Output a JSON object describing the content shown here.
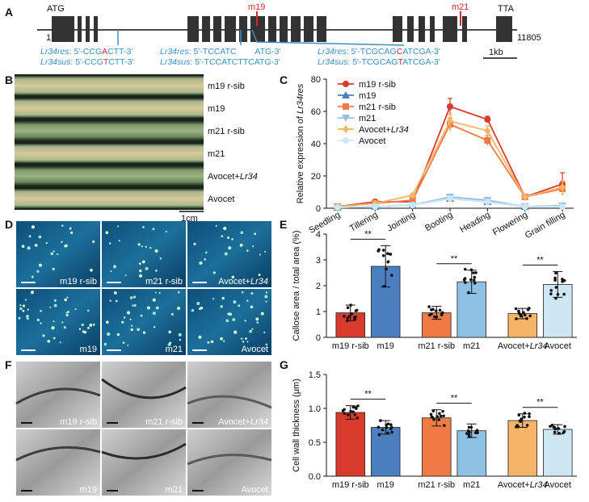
{
  "panel_labels": {
    "a": "A",
    "b": "B",
    "c": "C",
    "d": "D",
    "e": "E",
    "f": "F",
    "g": "G"
  },
  "panel_a": {
    "start_codon": "ATG",
    "stop_codon": "TTA",
    "pos_start": "1",
    "pos_end": "11805",
    "mutations": [
      "m19",
      "m21"
    ],
    "scale_bar": "1kb",
    "sequences": [
      {
        "res_label": "Lr34res",
        "res_seq_pre": ": 5'-CCG",
        "res_mut": "A",
        "res_seq_post": "CTT-3'",
        "sus_label": "Lr34sus",
        "sus_seq_pre": ": 5'-CCG",
        "sus_mut": "T",
        "sus_seq_post": "CTT-3'"
      },
      {
        "res_label": "Lr34res",
        "res_seq": ": 5'-TCCATC        ATG-3'",
        "sus_label": "Lr34sus",
        "sus_seq": ": 5'-TCCATCTTCATG-3'"
      },
      {
        "res_label": "Lr34res",
        "res_seq_pre": ": 5'-TCGCAG",
        "res_mut": "C",
        "res_seq_post": "ATCGA-3'",
        "sus_label": "Lr34sus",
        "sus_seq_pre": ": 5'-TCGCAG",
        "sus_mut": "T",
        "sus_seq_post": "ATCGA-3'"
      }
    ]
  },
  "panel_b": {
    "leaves": [
      "m19 r-sib",
      "m19",
      "m21 r-sib",
      "m21",
      "Avocet+Lr34",
      "Avocet"
    ],
    "scale_bar": "1cm"
  },
  "panel_d": {
    "top_row": [
      "m19 r-sib",
      "m21 r-sib",
      "Avocet+Lr34"
    ],
    "bottom_row": [
      "m19",
      "m21",
      "Avocet"
    ]
  },
  "panel_f": {
    "top_row": [
      "m19 r-sib",
      "m21 r-sib",
      "Avocet+Lr34"
    ],
    "bottom_row": [
      "m19",
      "m21",
      "Avocet"
    ]
  },
  "colors": {
    "m19_rsib": "#d63b2b",
    "m19": "#4b7fbf",
    "m21_rsib": "#f07a44",
    "m21": "#8ec2e4",
    "avocet_lr34": "#f6b466",
    "avocet": "#cfe6f4"
  },
  "chart_data": [
    {
      "type": "line",
      "panel": "C",
      "ylabel": "Relative expression of Lr34res",
      "ylim": [
        0,
        80
      ],
      "yticks": [
        0,
        20,
        40,
        60,
        80
      ],
      "categories": [
        "Seedling",
        "Tillering",
        "Jointing",
        "Booting",
        "Heading",
        "Flowering",
        "Grain filling"
      ],
      "legend_placement": "top-left",
      "series": [
        {
          "name": "m19 r-sib",
          "color": "#d63b2b",
          "marker": "circle",
          "values": [
            1,
            4,
            4,
            63,
            55,
            7,
            15
          ],
          "errors": [
            0.5,
            1,
            1,
            5,
            2,
            1,
            7
          ]
        },
        {
          "name": "m19",
          "color": "#4b7fbf",
          "marker": "triangle",
          "values": [
            0.5,
            1,
            2,
            6,
            4,
            1,
            1.5
          ],
          "errors": [
            0.3,
            0.5,
            0.5,
            1.5,
            1,
            0.5,
            0.5
          ]
        },
        {
          "name": "m21 r-sib",
          "color": "#f07a44",
          "marker": "square",
          "values": [
            1,
            3,
            5,
            52,
            42,
            7,
            12
          ],
          "errors": [
            0.5,
            1,
            1,
            4,
            3,
            1,
            4
          ]
        },
        {
          "name": "m21",
          "color": "#8ec2e4",
          "marker": "down-triangle",
          "values": [
            0.5,
            1,
            2,
            7,
            5,
            1,
            1.5
          ],
          "errors": [
            0.3,
            0.5,
            0.5,
            1.5,
            1,
            0.5,
            0.5
          ]
        },
        {
          "name": "Avocet+Lr34",
          "color": "#f6b466",
          "marker": "diamond",
          "values": [
            1,
            3,
            8,
            54,
            48,
            7,
            13
          ],
          "errors": [
            0.5,
            1,
            1,
            4,
            3,
            1,
            4
          ]
        },
        {
          "name": "Avocet",
          "color": "#cfe6f4",
          "marker": "circle",
          "values": [
            0.5,
            1,
            2,
            6,
            4,
            1,
            1
          ],
          "errors": [
            0.3,
            0.5,
            0.5,
            1.5,
            1,
            0.5,
            0.5
          ]
        }
      ]
    },
    {
      "type": "bar",
      "panel": "E",
      "ylabel": "Callose area / total area (%)",
      "ylim": [
        0,
        4
      ],
      "yticks": [
        0,
        1,
        2,
        3,
        4
      ],
      "categories": [
        "m19 r-sib",
        "m19",
        "m21 r-sib",
        "m21",
        "Avocet+Lr34",
        "Avocet"
      ],
      "values": [
        0.95,
        2.75,
        0.95,
        2.15,
        0.92,
        2.05
      ],
      "errors": [
        0.3,
        0.8,
        0.25,
        0.45,
        0.2,
        0.5
      ],
      "significance": [
        {
          "pair": [
            0,
            1
          ],
          "label": "**"
        },
        {
          "pair": [
            2,
            3
          ],
          "label": "**"
        },
        {
          "pair": [
            4,
            5
          ],
          "label": "**"
        }
      ]
    },
    {
      "type": "bar",
      "panel": "G",
      "ylabel": "Cell wall thickness (μm)",
      "ylim": [
        0,
        1.5
      ],
      "yticks": [
        0.0,
        0.5,
        1.0,
        1.5
      ],
      "categories": [
        "m19 r-sib",
        "m19",
        "m21 r-sib",
        "m21",
        "Avocet+Lr34",
        "Avocet"
      ],
      "values": [
        0.94,
        0.72,
        0.86,
        0.67,
        0.82,
        0.69
      ],
      "errors": [
        0.1,
        0.1,
        0.12,
        0.1,
        0.1,
        0.07
      ],
      "significance": [
        {
          "pair": [
            0,
            1
          ],
          "label": "**"
        },
        {
          "pair": [
            2,
            3
          ],
          "label": "**"
        },
        {
          "pair": [
            4,
            5
          ],
          "label": "**"
        }
      ]
    }
  ]
}
